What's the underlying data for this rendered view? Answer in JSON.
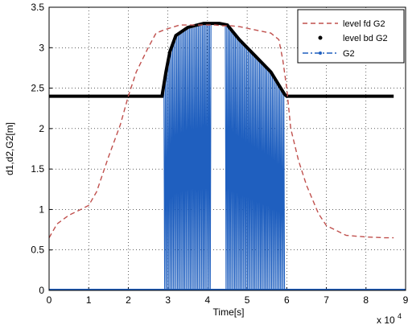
{
  "chart_data": {
    "type": "line",
    "title": "",
    "xlabel": "Time[s]",
    "ylabel": "d1,d2,G2[m]",
    "x_exponent_label": "x 10",
    "x_exponent_power": "4",
    "xlim": [
      0,
      9
    ],
    "ylim": [
      0,
      3.5
    ],
    "x_ticks": [
      "0",
      "1",
      "2",
      "3",
      "4",
      "5",
      "6",
      "7",
      "8",
      "9"
    ],
    "y_ticks": [
      "0",
      "0.5",
      "1",
      "1.5",
      "2",
      "2.5",
      "3",
      "3.5"
    ],
    "grid": true,
    "legend_position": "top-right",
    "series": [
      {
        "name": "level fd G2",
        "color": "#c0504d",
        "style": "dashed",
        "x": [
          0,
          0.2,
          0.5,
          0.8,
          1.0,
          1.2,
          1.5,
          1.8,
          2.0,
          2.2,
          2.5,
          2.7,
          2.9,
          3.1,
          3.3,
          3.5,
          3.8,
          4.0,
          4.2,
          4.4,
          4.6,
          4.8,
          5.0,
          5.2,
          5.4,
          5.6,
          5.8,
          5.9,
          6.0,
          6.1,
          6.3,
          6.5,
          6.8,
          7.0,
          7.5,
          8.0,
          8.5,
          8.7
        ],
        "y": [
          0.65,
          0.82,
          0.93,
          1.0,
          1.05,
          1.22,
          1.65,
          2.05,
          2.4,
          2.7,
          3.0,
          3.18,
          3.22,
          3.25,
          3.28,
          3.28,
          3.28,
          3.28,
          3.28,
          3.27,
          3.27,
          3.26,
          3.24,
          3.22,
          3.2,
          3.18,
          3.1,
          2.85,
          2.5,
          2.0,
          1.6,
          1.3,
          0.95,
          0.8,
          0.68,
          0.66,
          0.65,
          0.65
        ]
      },
      {
        "name": "level bd G2",
        "color": "#000000",
        "style": "dots",
        "x": [
          0,
          1,
          2,
          2.85,
          2.95,
          3.05,
          3.2,
          3.5,
          3.9,
          4.3,
          4.5,
          4.8,
          5.2,
          5.6,
          5.85,
          5.95,
          6.0,
          7,
          8,
          8.7
        ],
        "y": [
          2.4,
          2.4,
          2.4,
          2.4,
          2.7,
          2.95,
          3.15,
          3.25,
          3.3,
          3.3,
          3.28,
          3.1,
          2.9,
          2.7,
          2.5,
          2.42,
          2.4,
          2.4,
          2.4,
          2.4
        ]
      },
      {
        "name": "G2",
        "color": "#1f5fbf",
        "style": "dash-dot with markers",
        "x": [
          0,
          9
        ],
        "y": [
          0,
          0
        ],
        "note_band_1": [
          2.9,
          4.1
        ],
        "note_band_2": [
          4.45,
          5.95
        ]
      }
    ]
  }
}
